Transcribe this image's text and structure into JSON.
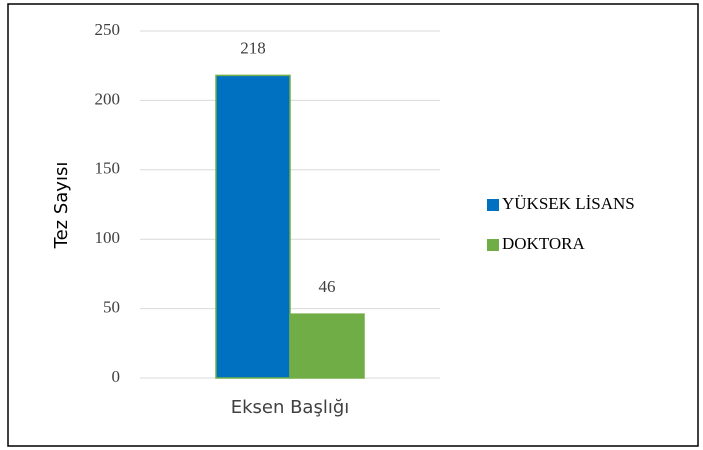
{
  "chart_data": {
    "type": "bar",
    "categories": [
      "Eksen Başlığı"
    ],
    "series": [
      {
        "name": "YÜKSEK LİSANS",
        "color": "#0070c0",
        "values": [
          218
        ]
      },
      {
        "name": "DOKTORA",
        "color": "#70ad47",
        "values": [
          46
        ]
      }
    ],
    "y_label": "Tez Sayısı",
    "ylim": [
      0,
      250
    ],
    "yticks": [
      0,
      50,
      100,
      150,
      200,
      250
    ],
    "grid": true,
    "legend": "right"
  }
}
